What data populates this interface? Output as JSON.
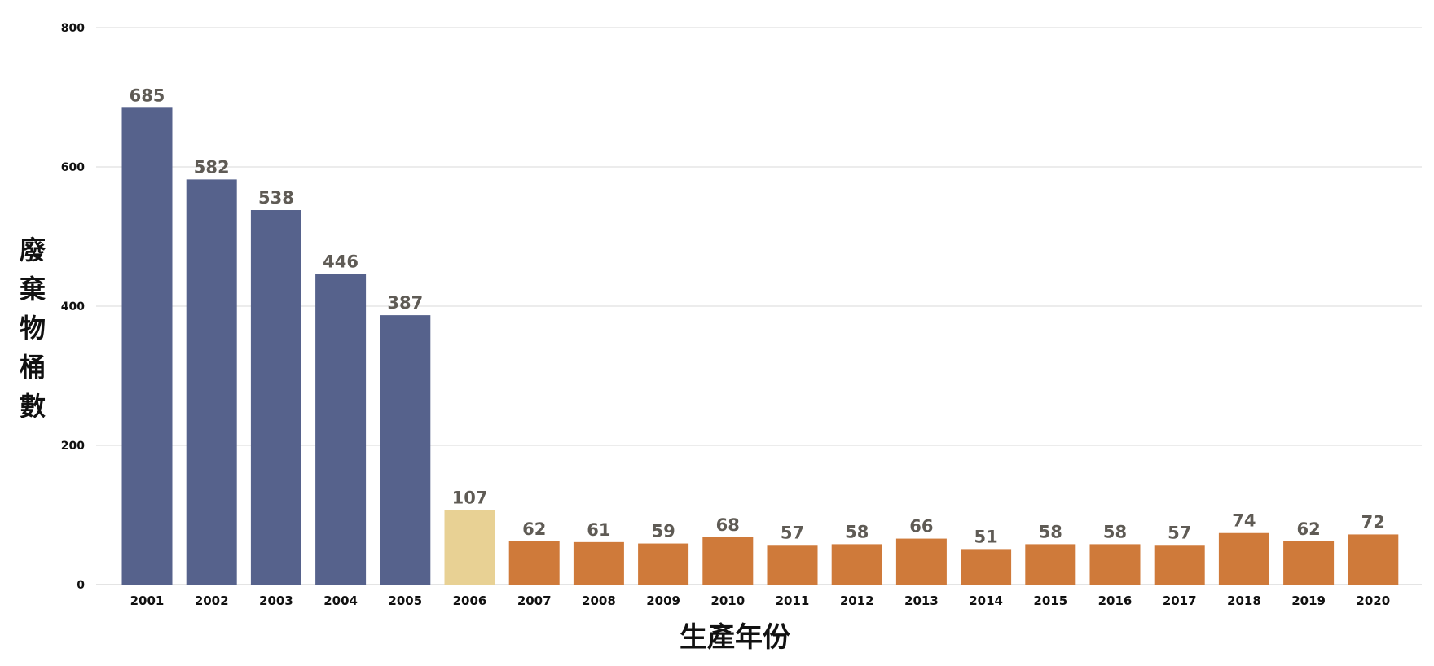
{
  "chart_data": {
    "type": "bar",
    "title": "",
    "xlabel": "生產年份",
    "ylabel": "廢棄物桶數",
    "ylim": [
      0,
      800
    ],
    "yticks": [
      0,
      200,
      400,
      600,
      800
    ],
    "grid": true,
    "categories": [
      "2001",
      "2002",
      "2003",
      "2004",
      "2005",
      "2006",
      "2007",
      "2008",
      "2009",
      "2010",
      "2011",
      "2012",
      "2013",
      "2014",
      "2015",
      "2016",
      "2017",
      "2018",
      "2019",
      "2020"
    ],
    "values": [
      685,
      582,
      538,
      446,
      387,
      107,
      62,
      61,
      59,
      68,
      57,
      58,
      66,
      51,
      58,
      58,
      57,
      74,
      62,
      72
    ],
    "colors": [
      "#56628c",
      "#56628c",
      "#56628c",
      "#56628c",
      "#56628c",
      "#e8d194",
      "#cf7a3a",
      "#cf7a3a",
      "#cf7a3a",
      "#cf7a3a",
      "#cf7a3a",
      "#cf7a3a",
      "#cf7a3a",
      "#cf7a3a",
      "#cf7a3a",
      "#cf7a3a",
      "#cf7a3a",
      "#cf7a3a",
      "#cf7a3a",
      "#cf7a3a"
    ]
  }
}
